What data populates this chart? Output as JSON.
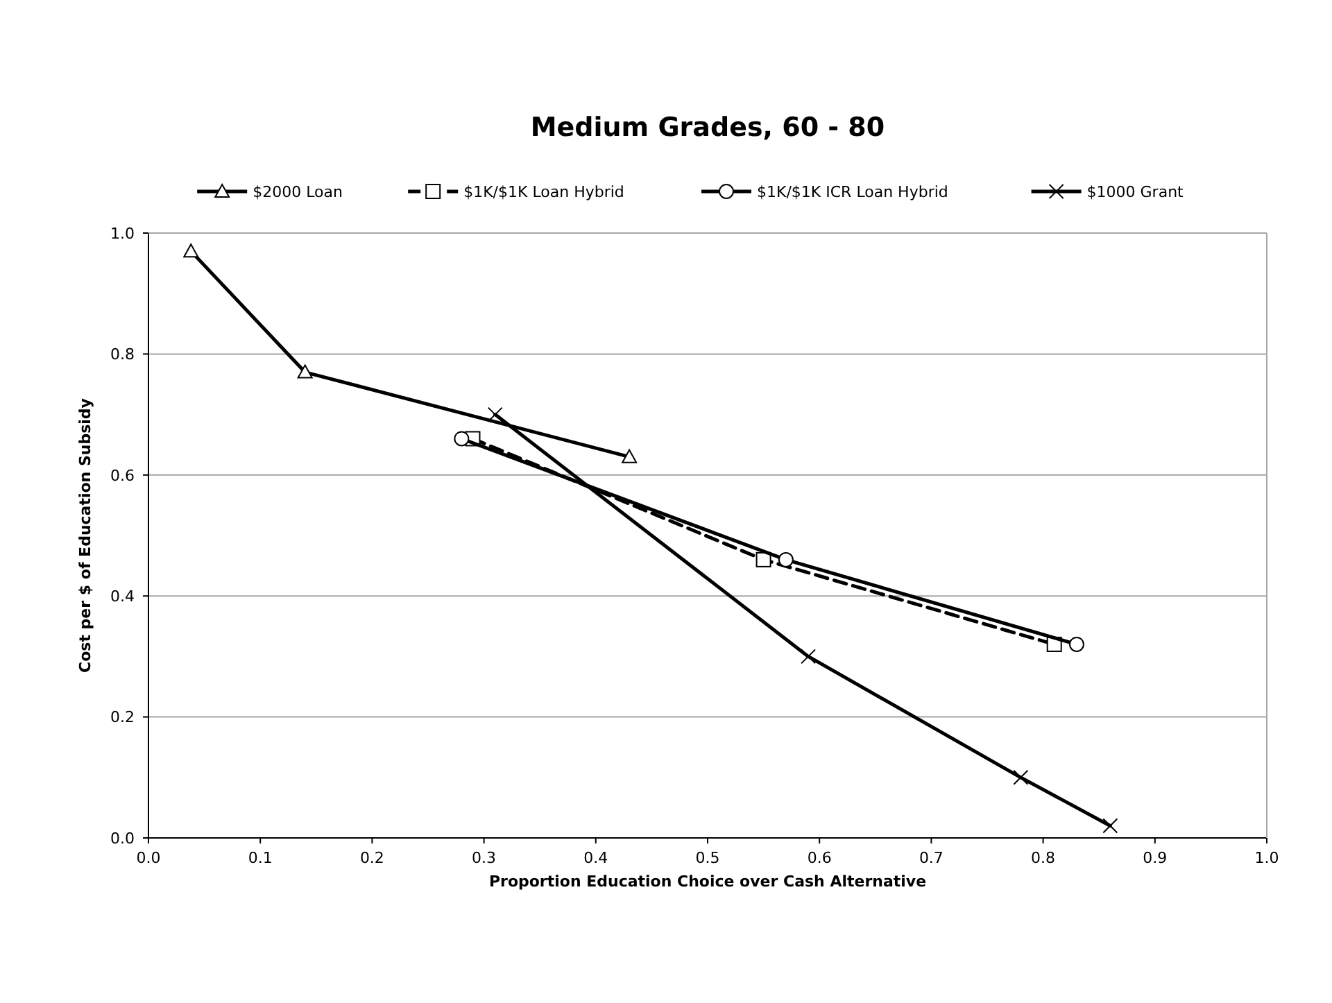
{
  "chart_data": {
    "type": "line",
    "title": "Medium Grades,  60 - 80",
    "xlabel": "Proportion Education Choice over Cash Alternative",
    "ylabel": "Cost per $ of Education Subsidy",
    "xlim": [
      0,
      1
    ],
    "ylim": [
      0,
      1
    ],
    "xticks": [
      {
        "value": 0,
        "label": "0.0"
      },
      0.1,
      0.2,
      0.3,
      0.4,
      0.5,
      0.6,
      0.7,
      0.8,
      0.9,
      {
        "value": 1,
        "label": "1.0"
      }
    ],
    "yticks": [
      {
        "value": 0,
        "label": "0.0"
      },
      0.2,
      0.4,
      0.6,
      0.8,
      {
        "value": 1,
        "label": "1.0"
      }
    ],
    "grid": "y",
    "legend": "top",
    "series": [
      {
        "name": "$2000 Loan",
        "color": "#000000",
        "marker": "triangle",
        "line_style": "solid",
        "x": [
          0.038,
          0.14,
          0.43
        ],
        "values": [
          0.97,
          0.77,
          0.63
        ]
      },
      {
        "name": "$1K/$1K Loan Hybrid",
        "color": "#000000",
        "marker": "square",
        "line_style": "dashed",
        "x": [
          0.29,
          0.55,
          0.81
        ],
        "values": [
          0.66,
          0.46,
          0.32
        ]
      },
      {
        "name": "$1K/$1K ICR Loan Hybrid",
        "color": "#000000",
        "marker": "circle",
        "line_style": "solid",
        "x": [
          0.28,
          0.57,
          0.83
        ],
        "values": [
          0.66,
          0.46,
          0.32
        ]
      },
      {
        "name": "$1000 Grant",
        "color": "#000000",
        "marker": "cross",
        "line_style": "solid",
        "x": [
          0.31,
          0.59,
          0.78,
          0.86
        ],
        "values": [
          0.7,
          0.3,
          0.1,
          0.02
        ]
      }
    ]
  }
}
